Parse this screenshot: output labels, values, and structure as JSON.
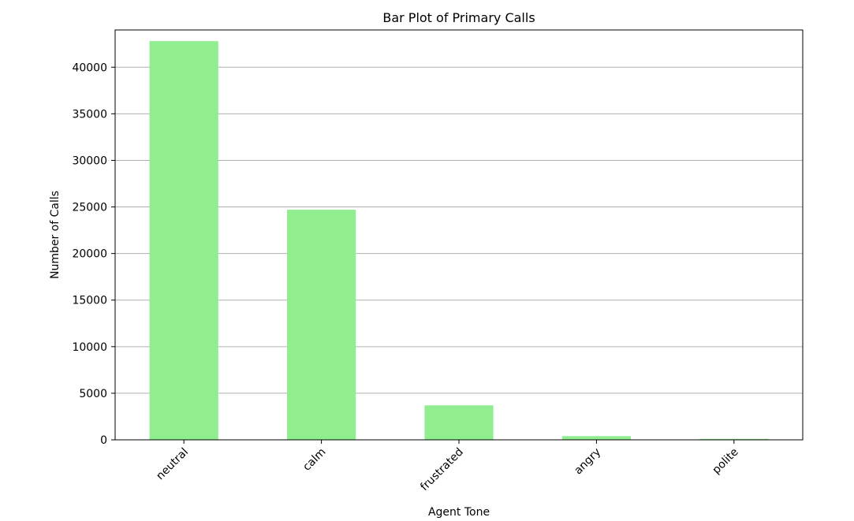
{
  "chart_data": {
    "type": "bar",
    "title": "Bar Plot of Primary Calls",
    "xlabel": "Agent Tone",
    "ylabel": "Number of Calls",
    "categories": [
      "neutral",
      "calm",
      "frustrated",
      "angry",
      "polite"
    ],
    "values": [
      42800,
      24700,
      3700,
      400,
      100
    ],
    "ylim": [
      0,
      44000
    ],
    "yticks": [
      0,
      5000,
      10000,
      15000,
      20000,
      25000,
      30000,
      35000,
      40000
    ],
    "ytick_labels": [
      "0",
      "5000",
      "10000",
      "15000",
      "20000",
      "25000",
      "30000",
      "35000",
      "40000"
    ],
    "grid": "y",
    "legend": "none",
    "bar_color": "#90ee90",
    "grid_color": "#b0b0b0"
  }
}
